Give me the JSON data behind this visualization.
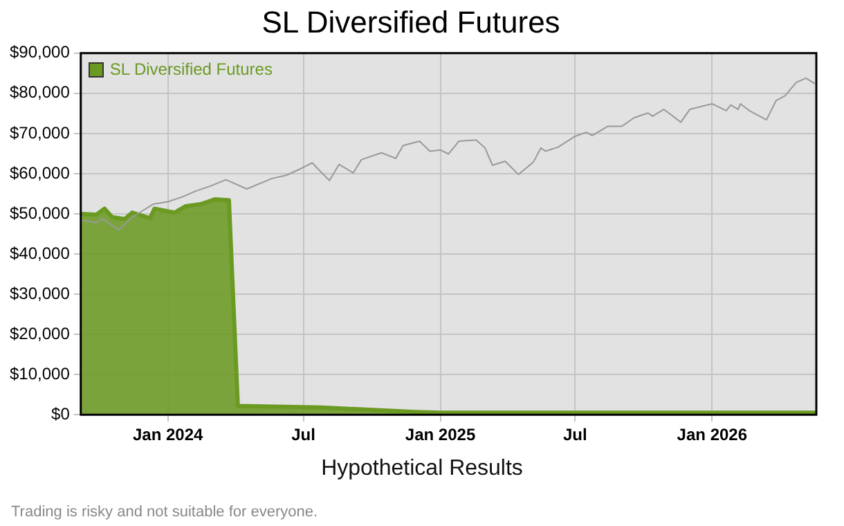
{
  "chart_data": {
    "type": "area",
    "title": "SL Diversified Futures",
    "xlabel": "Hypothetical Results",
    "annotations": [
      "Trading is risky and not suitable for everyone."
    ],
    "xlim": [
      "2023-09-06",
      "2026-05-21"
    ],
    "xticks": [
      {
        "value": "2024-01-01",
        "label": "Jan 2024"
      },
      {
        "value": "2024-07-01",
        "label": "Jul"
      },
      {
        "value": "2025-01-01",
        "label": "Jan 2025"
      },
      {
        "value": "2025-07-01",
        "label": "Jul"
      },
      {
        "value": "2026-01-01",
        "label": "Jan 2026"
      }
    ],
    "ylim": [
      0,
      90000
    ],
    "yticks": [
      {
        "value": 0,
        "label": "$0"
      },
      {
        "value": 10000,
        "label": "$10,000"
      },
      {
        "value": 20000,
        "label": "$20,000"
      },
      {
        "value": 30000,
        "label": "$30,000"
      },
      {
        "value": 40000,
        "label": "$40,000"
      },
      {
        "value": 50000,
        "label": "$50,000"
      },
      {
        "value": 60000,
        "label": "$60,000"
      },
      {
        "value": 70000,
        "label": "$70,000"
      },
      {
        "value": 80000,
        "label": "$80,000"
      },
      {
        "value": 90000,
        "label": "$90,000"
      }
    ],
    "grid": true,
    "legend": "top left",
    "marker": "none",
    "series": [
      {
        "name": "SL Diversified Futures",
        "color": "#6a9a22",
        "x": [
          "2023-09-06",
          "2023-09-27",
          "2023-10-08",
          "2023-10-18",
          "2023-11-04",
          "2023-11-14",
          "2023-12-08",
          "2023-12-14",
          "2024-01-10",
          "2024-01-25",
          "2024-02-14",
          "2024-03-04",
          "2024-03-23",
          "2024-04-04",
          "2024-07-25",
          "2024-11-29",
          "2025-01-01",
          "2026-05-21"
        ],
        "values": [
          50000,
          49800,
          51300,
          49200,
          48700,
          50300,
          48900,
          51300,
          50300,
          51900,
          52400,
          53600,
          53400,
          2200,
          1800,
          700,
          500,
          500
        ]
      },
      {
        "type": "line",
        "color": "#999999",
        "x": [
          "2023-09-06",
          "2023-09-27",
          "2023-10-05",
          "2023-10-27",
          "2023-11-12",
          "2023-11-24",
          "2023-12-12",
          "2024-01-01",
          "2024-01-20",
          "2024-02-08",
          "2024-02-27",
          "2024-03-19",
          "2024-04-16",
          "2024-05-20",
          "2024-06-08",
          "2024-06-27",
          "2024-07-13",
          "2024-07-19",
          "2024-08-05",
          "2024-08-18",
          "2024-09-06",
          "2024-09-17",
          "2024-10-14",
          "2024-11-02",
          "2024-11-12",
          "2024-12-04",
          "2024-12-18",
          "2025-01-01",
          "2025-01-12",
          "2025-01-26",
          "2025-02-18",
          "2025-03-02",
          "2025-03-12",
          "2025-03-29",
          "2025-04-16",
          "2025-05-06",
          "2025-05-16",
          "2025-05-22",
          "2025-06-08",
          "2025-07-01",
          "2025-07-16",
          "2025-07-24",
          "2025-08-14",
          "2025-09-02",
          "2025-09-18",
          "2025-10-07",
          "2025-10-13",
          "2025-10-28",
          "2025-11-06",
          "2025-11-20",
          "2025-12-02",
          "2026-01-01",
          "2026-01-20",
          "2026-01-26",
          "2026-02-05",
          "2026-02-08",
          "2026-02-20",
          "2026-03-15",
          "2026-03-28",
          "2026-04-09",
          "2026-04-24",
          "2026-05-07",
          "2026-05-19"
        ],
        "values": [
          48400,
          47800,
          48800,
          46000,
          48900,
          50300,
          52400,
          53000,
          54200,
          55700,
          56900,
          58500,
          56200,
          58800,
          59600,
          61200,
          62700,
          61500,
          58300,
          62300,
          60200,
          63500,
          65200,
          63800,
          67000,
          68100,
          65600,
          65900,
          64900,
          68100,
          68400,
          66400,
          62100,
          63100,
          59800,
          62900,
          66400,
          65600,
          66600,
          69300,
          70300,
          69500,
          71800,
          71800,
          73900,
          75100,
          74300,
          76000,
          74800,
          72800,
          76000,
          77400,
          75700,
          77100,
          76000,
          77400,
          75700,
          73400,
          78200,
          79400,
          82700,
          83800,
          82400
        ]
      }
    ]
  }
}
